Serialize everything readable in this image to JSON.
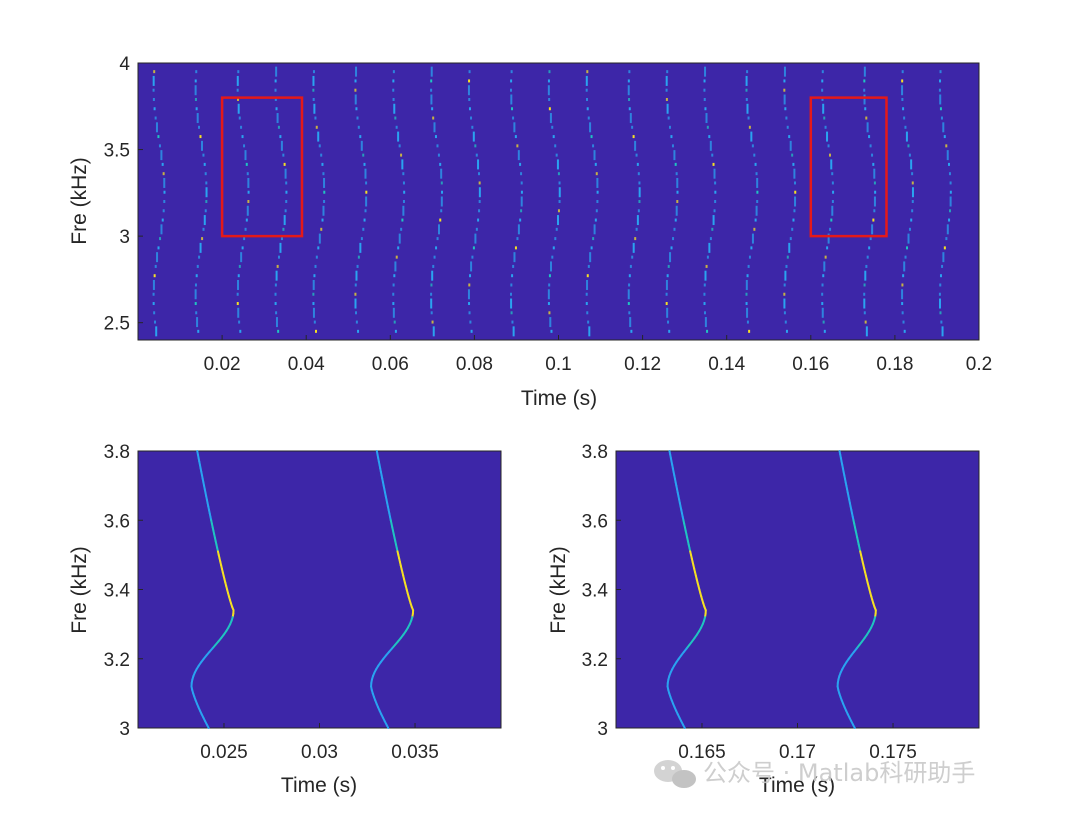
{
  "colors": {
    "background_field": "#3d26a8",
    "ridge_low": "#2aa3f0",
    "ridge_mid": "#20c4c1",
    "ridge_high": "#f5e024",
    "selection_box": "#e51919",
    "axis": "#262626"
  },
  "chart_data": [
    {
      "id": "top",
      "type": "heatmap",
      "title": "",
      "xlabel": "Time (s)",
      "ylabel": "Fre (kHz)",
      "xlim": [
        0,
        0.2
      ],
      "ylim": [
        2.4,
        4.0
      ],
      "xticks": [
        0.02,
        0.04,
        0.06,
        0.08,
        0.1,
        0.12,
        0.14,
        0.16,
        0.18,
        0.2
      ],
      "xtick_labels": [
        "0.02",
        "0.04",
        "0.06",
        "0.08",
        "0.1",
        "0.12",
        "0.14",
        "0.16",
        "0.18",
        "0.2"
      ],
      "yticks": [
        2.5,
        3,
        3.5,
        4
      ],
      "ytick_labels": [
        "2.5",
        "3",
        "3.5",
        "4"
      ],
      "colormap": "parula",
      "ridge_times": [
        0.005,
        0.015,
        0.025,
        0.034,
        0.043,
        0.053,
        0.062,
        0.071,
        0.08,
        0.09,
        0.099,
        0.108,
        0.118,
        0.127,
        0.136,
        0.146,
        0.155,
        0.164,
        0.174,
        0.183,
        0.192
      ],
      "highlight_boxes": [
        {
          "x": [
            0.02,
            0.039
          ],
          "y": [
            3.0,
            3.8
          ]
        },
        {
          "x": [
            0.16,
            0.178
          ],
          "y": [
            3.0,
            3.8
          ]
        }
      ]
    },
    {
      "id": "bottom-left",
      "type": "heatmap",
      "title": "",
      "xlabel": "Time (s)",
      "ylabel": "Fre (kHz)",
      "xlim": [
        0.0205,
        0.0395
      ],
      "ylim": [
        3.0,
        3.8
      ],
      "xticks": [
        0.025,
        0.03,
        0.035
      ],
      "xtick_labels": [
        "0.025",
        "0.03",
        "0.035"
      ],
      "yticks": [
        3,
        3.2,
        3.4,
        3.6,
        3.8
      ],
      "ytick_labels": [
        "3",
        "3.2",
        "3.4",
        "3.6",
        "3.8"
      ],
      "colormap": "parula",
      "ridges": [
        {
          "t_peak": 0.0255,
          "f_peak": 3.34,
          "t_trough": 0.0233,
          "f_trough": 3.12
        },
        {
          "t_peak": 0.0349,
          "f_peak": 3.34,
          "t_trough": 0.0327,
          "f_trough": 3.12
        }
      ]
    },
    {
      "id": "bottom-right",
      "type": "heatmap",
      "title": "",
      "xlabel": "Time (s)",
      "ylabel": "Fre (kHz)",
      "xlim": [
        0.1605,
        0.1795
      ],
      "ylim": [
        3.0,
        3.8
      ],
      "xticks": [
        0.165,
        0.17,
        0.175
      ],
      "xtick_labels": [
        "0.165",
        "0.17",
        "0.175"
      ],
      "yticks": [
        3,
        3.2,
        3.4,
        3.6,
        3.8
      ],
      "ytick_labels": [
        "3",
        "3.2",
        "3.4",
        "3.6",
        "3.8"
      ],
      "colormap": "parula",
      "ridges": [
        {
          "t_peak": 0.1652,
          "f_peak": 3.34,
          "t_trough": 0.1632,
          "f_trough": 3.12
        },
        {
          "t_peak": 0.1741,
          "f_peak": 3.34,
          "t_trough": 0.1721,
          "f_trough": 3.12
        }
      ]
    }
  ],
  "watermark": {
    "text": "公众号 · Matlab科研助手",
    "icon": "wechat-icon"
  }
}
